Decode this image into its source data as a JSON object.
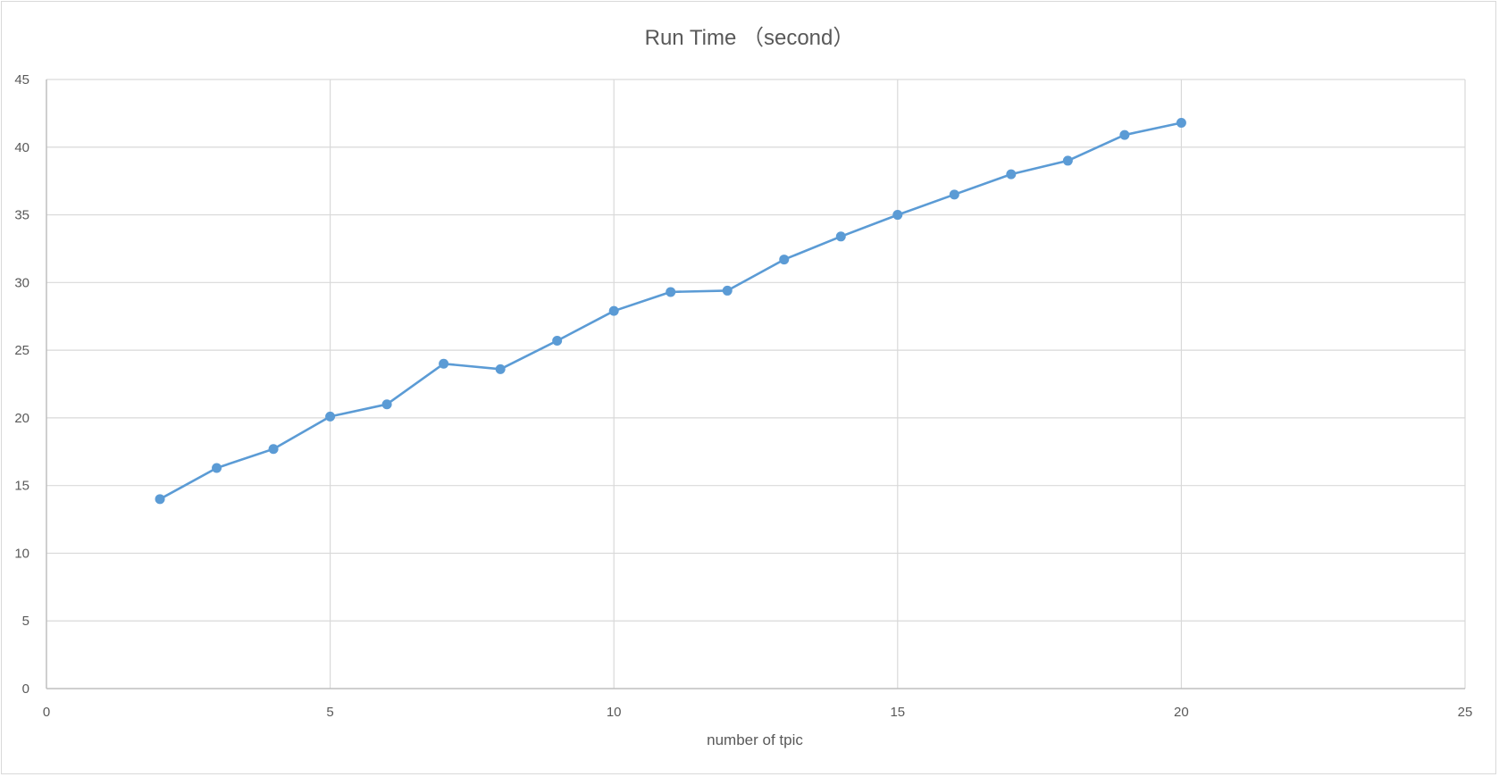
{
  "chart_data": {
    "type": "scatter",
    "title": "Run Time （second）",
    "xlabel": "number of tpic",
    "ylabel": "",
    "xlim": [
      0,
      25
    ],
    "ylim": [
      0,
      45
    ],
    "xticks": [
      0,
      5,
      10,
      15,
      20,
      25
    ],
    "yticks": [
      0,
      5,
      10,
      15,
      20,
      25,
      30,
      35,
      40,
      45
    ],
    "grid": true,
    "legend": "none",
    "series": [
      {
        "color": "#5b9bd5",
        "x": [
          2,
          3,
          4,
          5,
          6,
          7,
          8,
          9,
          10,
          11,
          12,
          13,
          14,
          15,
          16,
          17,
          18,
          19,
          20
        ],
        "y": [
          14.0,
          16.3,
          17.7,
          20.1,
          21.0,
          24.0,
          23.6,
          25.7,
          27.9,
          29.3,
          29.4,
          31.7,
          33.4,
          35.0,
          36.5,
          38.0,
          39.0,
          40.9,
          41.8
        ]
      }
    ]
  },
  "colors": {
    "grid": "#d9d9d9",
    "axis": "#bfbfbf",
    "text": "#595959",
    "series": "#5b9bd5"
  }
}
